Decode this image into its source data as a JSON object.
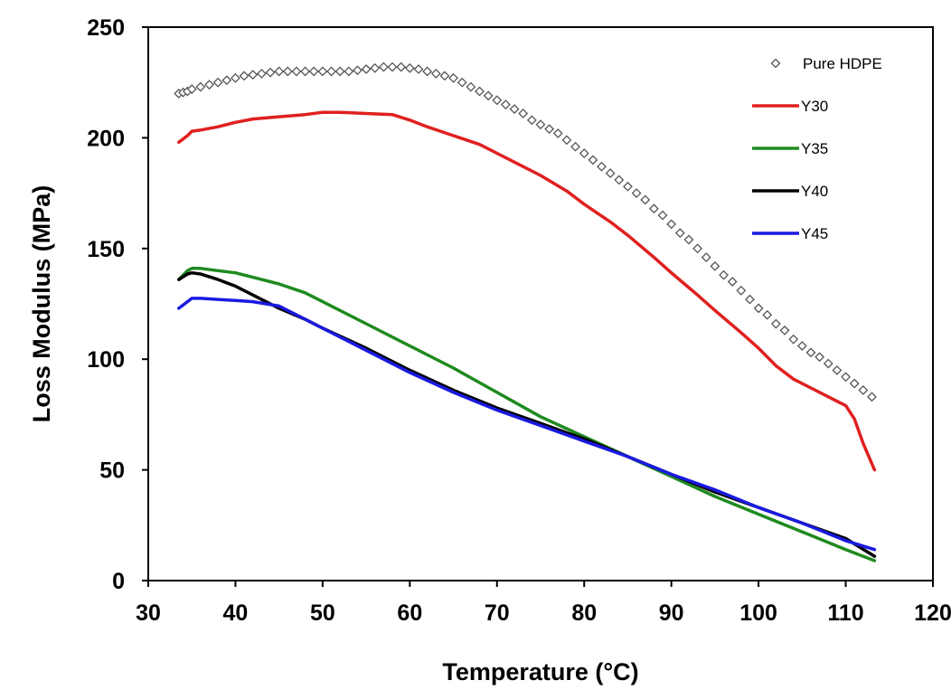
{
  "chart_data": {
    "type": "line",
    "title": "",
    "xlabel": "Temperature (°C)",
    "ylabel": "Loss Modulus (MPa)",
    "xlim": [
      30,
      120
    ],
    "ylim": [
      0,
      250
    ],
    "x_ticks": [
      30,
      40,
      50,
      60,
      70,
      80,
      90,
      100,
      110,
      120
    ],
    "y_ticks": [
      0,
      50,
      100,
      150,
      200,
      250
    ],
    "grid": false,
    "legend_position": "top-right",
    "series": [
      {
        "name": "Pure HDPE",
        "style": "markers",
        "marker": "diamond",
        "color": "#555555",
        "x": [
          33.5,
          34,
          34.5,
          35,
          36,
          37,
          38,
          39,
          40,
          41,
          42,
          43,
          44,
          45,
          46,
          47,
          48,
          49,
          50,
          51,
          52,
          53,
          54,
          55,
          56,
          57,
          58,
          59,
          60,
          61,
          62,
          63,
          64,
          65,
          66,
          67,
          68,
          69,
          70,
          71,
          72,
          73,
          74,
          75,
          76,
          77,
          78,
          79,
          80,
          81,
          82,
          83,
          84,
          85,
          86,
          87,
          88,
          89,
          90,
          91,
          92,
          93,
          94,
          95,
          96,
          97,
          98,
          99,
          100,
          101,
          102,
          103,
          104,
          105,
          106,
          107,
          108,
          109,
          110,
          111,
          112,
          113
        ],
        "y": [
          220,
          220.5,
          221,
          222,
          223,
          224,
          225,
          226,
          227,
          228,
          228.5,
          229,
          229.5,
          230,
          230,
          230,
          230,
          230,
          230,
          230,
          230,
          230,
          230.5,
          231,
          231.5,
          232,
          232,
          232,
          231.5,
          231,
          230,
          229,
          228,
          227,
          225,
          223,
          221,
          219,
          217,
          215,
          213,
          211,
          208,
          206,
          204,
          202,
          199,
          196,
          193,
          190,
          187,
          184,
          181,
          178,
          175,
          172,
          168,
          165,
          161,
          157,
          154,
          150,
          146,
          142,
          138,
          135,
          131,
          127,
          123,
          120,
          116,
          113,
          109,
          106,
          103,
          101,
          98,
          95,
          92,
          89,
          86,
          83
        ]
      },
      {
        "name": "Y30",
        "style": "line",
        "color": "#e02020",
        "x": [
          33.5,
          34.5,
          35,
          36,
          38,
          40,
          42,
          45,
          48,
          50,
          52,
          55,
          58,
          60,
          62,
          65,
          68,
          70,
          72,
          75,
          78,
          80,
          83,
          85,
          88,
          90,
          93,
          95,
          98,
          100,
          102,
          104,
          106,
          108,
          109,
          110,
          111,
          112,
          113.3
        ],
        "y": [
          198,
          201,
          203,
          203.5,
          205,
          207,
          208.5,
          209.5,
          210.5,
          211.5,
          211.5,
          211,
          210.5,
          208,
          205,
          201,
          197,
          193,
          189,
          183,
          176,
          170,
          162,
          156,
          146,
          139,
          129,
          122,
          112,
          105,
          97,
          91,
          87,
          83,
          81,
          79,
          73,
          62,
          50
        ]
      },
      {
        "name": "Y35",
        "style": "line",
        "color": "#1f8a1f",
        "x": [
          33.5,
          34.5,
          35,
          36,
          38,
          40,
          42,
          45,
          48,
          50,
          55,
          60,
          65,
          70,
          75,
          80,
          85,
          90,
          95,
          100,
          105,
          110,
          113.3
        ],
        "y": [
          136,
          140,
          141,
          141,
          140,
          139,
          137,
          134,
          130,
          126,
          116,
          106,
          96,
          85,
          74,
          65,
          56,
          47,
          38,
          30,
          22,
          14,
          9
        ]
      },
      {
        "name": "Y40",
        "style": "line",
        "color": "#000000",
        "x": [
          33.5,
          34.5,
          35,
          36,
          38,
          40,
          42,
          45,
          48,
          50,
          55,
          60,
          65,
          70,
          75,
          80,
          85,
          90,
          95,
          100,
          105,
          110,
          113.3
        ],
        "y": [
          136,
          138.5,
          139,
          138.5,
          136,
          133,
          129,
          123,
          118,
          114,
          105,
          95,
          86,
          78,
          71,
          64,
          56,
          48,
          40,
          33,
          26,
          19,
          11
        ]
      },
      {
        "name": "Y45",
        "style": "line",
        "color": "#1a1ae0",
        "x": [
          33.5,
          34.5,
          35,
          36,
          38,
          40,
          42,
          45,
          46,
          48,
          50,
          55,
          60,
          65,
          70,
          75,
          80,
          85,
          90,
          95,
          100,
          105,
          110,
          113.3
        ],
        "y": [
          123,
          126,
          127.5,
          127.5,
          127,
          126.5,
          126,
          124,
          122,
          118,
          114,
          104,
          94,
          85,
          77,
          70,
          63,
          56,
          48,
          41,
          33,
          26,
          18,
          14
        ]
      }
    ]
  }
}
